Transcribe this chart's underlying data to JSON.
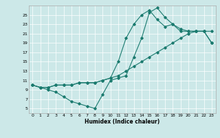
{
  "xlabel": "Humidex (Indice chaleur)",
  "ylabel": "",
  "bg_color": "#cce8e8",
  "line_color": "#1a7a6e",
  "xlim": [
    -0.5,
    23.5
  ],
  "ylim": [
    4,
    27
  ],
  "xticks": [
    0,
    1,
    2,
    3,
    4,
    5,
    6,
    7,
    8,
    9,
    10,
    11,
    12,
    13,
    14,
    15,
    16,
    17,
    18,
    19,
    20,
    21,
    22,
    23
  ],
  "yticks": [
    5,
    7,
    9,
    11,
    13,
    15,
    17,
    19,
    21,
    23,
    25
  ],
  "series": [
    {
      "x": [
        0,
        1,
        2,
        3,
        4,
        5,
        6,
        7,
        8,
        9,
        10,
        11,
        12,
        13,
        14,
        15,
        16,
        17,
        18,
        19,
        20,
        21,
        22,
        23
      ],
      "y": [
        10,
        9.5,
        9,
        8.5,
        7.5,
        6.5,
        6,
        5.5,
        5,
        8,
        11,
        11.5,
        12,
        16,
        20,
        25.5,
        26.5,
        24.5,
        23,
        22,
        21.5,
        21.5,
        21.5,
        19
      ]
    },
    {
      "x": [
        0,
        1,
        2,
        3,
        4,
        5,
        6,
        7,
        8,
        9,
        10,
        11,
        12,
        13,
        14,
        15,
        16,
        17,
        18,
        19,
        20,
        21,
        22,
        23
      ],
      "y": [
        10,
        9.5,
        9.5,
        10,
        10,
        10,
        10.5,
        10.5,
        10.5,
        11,
        11.5,
        15,
        20,
        23,
        25,
        26,
        24,
        22.5,
        23,
        21.5,
        21.5,
        21.5,
        21.5,
        21.5
      ]
    },
    {
      "x": [
        0,
        1,
        2,
        3,
        4,
        5,
        6,
        7,
        8,
        9,
        10,
        11,
        12,
        13,
        14,
        15,
        16,
        17,
        18,
        19,
        20,
        21,
        22,
        23
      ],
      "y": [
        10,
        9.5,
        9.5,
        10,
        10,
        10,
        10.5,
        10.5,
        10.5,
        11,
        11.5,
        12,
        13,
        14,
        15,
        16,
        17,
        18,
        19,
        20,
        21,
        21.5,
        21.5,
        19
      ]
    }
  ]
}
